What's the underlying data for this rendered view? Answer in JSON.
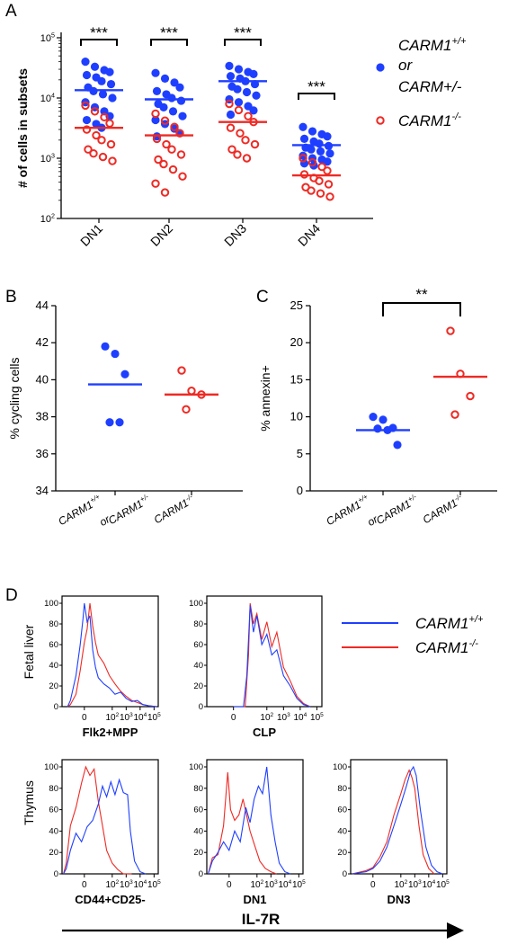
{
  "colors": {
    "wt": "#1f3fff",
    "ko": "#ee2a24",
    "axis": "#000000"
  },
  "panels": {
    "a": "A",
    "b": "B",
    "c": "C",
    "d": "D"
  },
  "chart_data": [
    {
      "id": "A",
      "type": "scatter",
      "log_y": true,
      "ylabel": "# of cells in subsets",
      "y_ticks": [
        {
          "v": 100,
          "base": "10",
          "exp": "2"
        },
        {
          "v": 1000,
          "base": "10",
          "exp": "3"
        },
        {
          "v": 10000,
          "base": "10",
          "exp": "4"
        },
        {
          "v": 100000,
          "base": "10",
          "exp": "5"
        }
      ],
      "ylim": [
        100,
        100000
      ],
      "categories": [
        "DN1",
        "DN2",
        "DN3",
        "DN4"
      ],
      "significance": [
        "***",
        "***",
        "***",
        "***"
      ],
      "legend": {
        "wt_lines": [
          {
            "main": "CARM1",
            "sup": "+/+"
          },
          {
            "main": "or",
            "sup": ""
          },
          {
            "main": "CARM+/-",
            "sup": ""
          }
        ],
        "ko_lines": [
          {
            "main": "CARM1",
            "sup": "-/-"
          }
        ]
      },
      "series": [
        {
          "group": "wt",
          "means": [
            13500,
            9500,
            19000,
            1650
          ],
          "values": [
            [
              40000,
              33000,
              29000,
              27000,
              24000,
              22000,
              19000,
              17000,
              15000,
              13000,
              11500,
              10000,
              8500,
              7000,
              6000,
              5000,
              4300,
              3700,
              3200
            ],
            [
              26000,
              21000,
              18000,
              15000,
              13000,
              11500,
              10000,
              9000,
              8000,
              7000,
              6000,
              5000,
              4300,
              3700,
              3100,
              2600,
              2300
            ],
            [
              34000,
              30000,
              27000,
              25000,
              23000,
              21000,
              19000,
              17000,
              15500,
              14000,
              12500,
              11000,
              9500,
              8500,
              7300,
              6200,
              5300
            ],
            [
              3300,
              2800,
              2500,
              2300,
              2100,
              1900,
              1750,
              1600,
              1500,
              1400,
              1300,
              1200,
              1100,
              1000,
              950,
              880,
              820,
              760
            ]
          ]
        },
        {
          "group": "ko",
          "means": [
            3200,
            2400,
            4000,
            520
          ],
          "values": [
            [
              7500,
              6000,
              4800,
              3800,
              3000,
              2400,
              2000,
              1700,
              1400,
              1200,
              1050,
              900
            ],
            [
              5500,
              4200,
              3300,
              2600,
              2100,
              1700,
              1400,
              1150,
              950,
              800,
              650,
              500,
              380,
              270
            ],
            [
              8000,
              6300,
              5000,
              4000,
              3200,
              2600,
              2000,
              1700,
              1400,
              1150,
              1000
            ],
            [
              1000,
              850,
              720,
              620,
              540,
              470,
              420,
              370,
              330,
              290,
              260,
              230
            ]
          ]
        }
      ]
    },
    {
      "id": "B",
      "type": "scatter",
      "ylabel": "% cycling cells",
      "y_ticks": [
        34,
        36,
        38,
        40,
        42,
        44
      ],
      "ylim": [
        34,
        44
      ],
      "categories": [
        {
          "lines": [
            [
              {
                "t": "CARM1",
                "s": "+/+"
              }
            ],
            [
              {
                "t": "or",
                "s": ""
              }
            ],
            [
              {
                "t": "CARM1",
                "s": "+/-"
              }
            ]
          ]
        },
        {
          "lines": [
            [
              {
                "t": "CARM1",
                "s": "-/-"
              }
            ]
          ]
        }
      ],
      "series": [
        {
          "group": "wt",
          "mean": 39.75,
          "values": [
            41.8,
            41.4,
            40.3,
            37.7,
            37.7
          ]
        },
        {
          "group": "ko",
          "mean": 39.2,
          "values": [
            40.5,
            39.4,
            39.2,
            38.4
          ]
        }
      ]
    },
    {
      "id": "C",
      "type": "scatter",
      "ylabel": "% annexin+",
      "y_ticks": [
        0,
        5,
        10,
        15,
        20,
        25
      ],
      "ylim": [
        0,
        25
      ],
      "significance": "**",
      "categories": [
        {
          "lines": [
            [
              {
                "t": "CARM1",
                "s": "+/+"
              }
            ],
            [
              {
                "t": "or",
                "s": ""
              }
            ],
            [
              {
                "t": "CARM1",
                "s": "+/-"
              }
            ]
          ]
        },
        {
          "lines": [
            [
              {
                "t": "CARM1",
                "s": "-/-"
              }
            ]
          ]
        }
      ],
      "series": [
        {
          "group": "wt",
          "mean": 8.2,
          "values": [
            10.0,
            9.6,
            8.5,
            8.4,
            8.2,
            6.2
          ]
        },
        {
          "group": "ko",
          "mean": 15.4,
          "values": [
            21.6,
            15.8,
            12.8,
            10.3
          ]
        }
      ]
    },
    {
      "id": "D",
      "type": "line",
      "legend": [
        {
          "group": "wt",
          "main": "CARM1",
          "sup": "+/+"
        },
        {
          "group": "ko",
          "main": "CARM1",
          "sup": "-/-"
        }
      ],
      "row_labels": [
        "Fetal liver",
        "Thymus"
      ],
      "y_ticks": [
        0,
        20,
        40,
        60,
        80,
        100
      ],
      "ylim": [
        0,
        100
      ],
      "x_ticks": [
        {
          "v": 0,
          "base": "0",
          "exp": ""
        },
        {
          "v": 2,
          "base": "10",
          "exp": "2"
        },
        {
          "v": 3,
          "base": "10",
          "exp": "3"
        },
        {
          "v": 4,
          "base": "10",
          "exp": "4"
        },
        {
          "v": 5,
          "base": "10",
          "exp": "5"
        }
      ],
      "xaxis_label": "IL-7R",
      "plots": [
        {
          "label": "Flk2+MPP",
          "wt": [
            [
              -1.2,
              0
            ],
            [
              -1,
              6
            ],
            [
              -0.6,
              30
            ],
            [
              -0.3,
              60
            ],
            [
              -0.1,
              85
            ],
            [
              0,
              100
            ],
            [
              0.2,
              82
            ],
            [
              0.4,
              88
            ],
            [
              0.6,
              55
            ],
            [
              0.8,
              38
            ],
            [
              1,
              28
            ],
            [
              1.4,
              22
            ],
            [
              1.8,
              18
            ],
            [
              2.2,
              12
            ],
            [
              2.6,
              14
            ],
            [
              3,
              8
            ],
            [
              3.4,
              5
            ],
            [
              3.8,
              6
            ],
            [
              4.2,
              2
            ],
            [
              4.6,
              1
            ],
            [
              5.2,
              0
            ]
          ],
          "ko": [
            [
              -1.2,
              0
            ],
            [
              -1,
              2
            ],
            [
              -0.6,
              12
            ],
            [
              -0.3,
              35
            ],
            [
              0,
              62
            ],
            [
              0.2,
              75
            ],
            [
              0.4,
              100
            ],
            [
              0.6,
              78
            ],
            [
              0.8,
              62
            ],
            [
              1,
              50
            ],
            [
              1.4,
              42
            ],
            [
              1.8,
              30
            ],
            [
              2.2,
              22
            ],
            [
              2.6,
              15
            ],
            [
              3,
              10
            ],
            [
              3.4,
              6
            ],
            [
              3.8,
              4
            ],
            [
              4.2,
              2
            ],
            [
              4.6,
              1
            ],
            [
              5.2,
              0
            ]
          ]
        },
        {
          "label": "CLP",
          "wt": [
            [
              0,
              0
            ],
            [
              0.6,
              0
            ],
            [
              0.8,
              30
            ],
            [
              1,
              98
            ],
            [
              1.2,
              72
            ],
            [
              1.4,
              88
            ],
            [
              1.7,
              60
            ],
            [
              2,
              70
            ],
            [
              2.3,
              50
            ],
            [
              2.6,
              55
            ],
            [
              3,
              30
            ],
            [
              3.4,
              20
            ],
            [
              3.8,
              8
            ],
            [
              4.2,
              2
            ],
            [
              4.6,
              0
            ]
          ],
          "ko": [
            [
              0,
              0
            ],
            [
              0.7,
              0
            ],
            [
              0.9,
              50
            ],
            [
              1,
              100
            ],
            [
              1.2,
              80
            ],
            [
              1.4,
              90
            ],
            [
              1.7,
              65
            ],
            [
              2,
              82
            ],
            [
              2.3,
              58
            ],
            [
              2.6,
              72
            ],
            [
              3,
              38
            ],
            [
              3.4,
              25
            ],
            [
              3.8,
              10
            ],
            [
              4.2,
              3
            ],
            [
              4.6,
              0
            ]
          ]
        },
        {
          "label": "CD44+CD25-",
          "wt": [
            [
              -1.5,
              0
            ],
            [
              -1.3,
              5
            ],
            [
              -1,
              22
            ],
            [
              -0.6,
              38
            ],
            [
              -0.2,
              30
            ],
            [
              0.2,
              44
            ],
            [
              0.6,
              50
            ],
            [
              1,
              65
            ],
            [
              1.3,
              82
            ],
            [
              1.6,
              72
            ],
            [
              1.9,
              86
            ],
            [
              2.2,
              74
            ],
            [
              2.5,
              88
            ],
            [
              2.8,
              76
            ],
            [
              3.1,
              74
            ],
            [
              3.3,
              40
            ],
            [
              3.6,
              12
            ],
            [
              4,
              2
            ],
            [
              4.4,
              0
            ]
          ],
          "ko": [
            [
              -1.5,
              0
            ],
            [
              -1.3,
              10
            ],
            [
              -1,
              45
            ],
            [
              -0.6,
              62
            ],
            [
              -0.2,
              85
            ],
            [
              0.1,
              100
            ],
            [
              0.4,
              92
            ],
            [
              0.7,
              98
            ],
            [
              1,
              68
            ],
            [
              1.3,
              45
            ],
            [
              1.6,
              22
            ],
            [
              2,
              10
            ],
            [
              2.4,
              4
            ],
            [
              2.8,
              0
            ],
            [
              3.4,
              0
            ]
          ]
        },
        {
          "label": "DN1",
          "wt": [
            [
              -1.5,
              0
            ],
            [
              -1.2,
              12
            ],
            [
              -0.8,
              20
            ],
            [
              -0.4,
              30
            ],
            [
              0,
              22
            ],
            [
              0.4,
              40
            ],
            [
              0.8,
              30
            ],
            [
              1.2,
              62
            ],
            [
              1.5,
              48
            ],
            [
              1.8,
              70
            ],
            [
              2.1,
              82
            ],
            [
              2.4,
              75
            ],
            [
              2.7,
              100
            ],
            [
              3,
              55
            ],
            [
              3.3,
              30
            ],
            [
              3.6,
              10
            ],
            [
              4,
              2
            ],
            [
              4.4,
              0
            ]
          ],
          "ko": [
            [
              -1.5,
              0
            ],
            [
              -1.2,
              15
            ],
            [
              -0.8,
              18
            ],
            [
              -0.4,
              45
            ],
            [
              -0.1,
              95
            ],
            [
              0.1,
              60
            ],
            [
              0.4,
              50
            ],
            [
              0.7,
              55
            ],
            [
              1,
              70
            ],
            [
              1.2,
              58
            ],
            [
              1.5,
              40
            ],
            [
              1.8,
              28
            ],
            [
              2.2,
              12
            ],
            [
              2.6,
              5
            ],
            [
              3,
              2
            ],
            [
              3.4,
              0
            ]
          ]
        },
        {
          "label": "DN3",
          "wt": [
            [
              -1.5,
              0
            ],
            [
              -0.5,
              2
            ],
            [
              0,
              5
            ],
            [
              0.5,
              12
            ],
            [
              1,
              25
            ],
            [
              1.5,
              45
            ],
            [
              2,
              65
            ],
            [
              2.4,
              82
            ],
            [
              2.7,
              96
            ],
            [
              2.9,
              100
            ],
            [
              3.1,
              92
            ],
            [
              3.4,
              60
            ],
            [
              3.8,
              25
            ],
            [
              4.2,
              8
            ],
            [
              4.6,
              2
            ],
            [
              5,
              0
            ]
          ],
          "ko": [
            [
              -1.5,
              0
            ],
            [
              -0.5,
              3
            ],
            [
              0,
              6
            ],
            [
              0.5,
              16
            ],
            [
              1,
              30
            ],
            [
              1.5,
              55
            ],
            [
              2,
              75
            ],
            [
              2.3,
              88
            ],
            [
              2.6,
              97
            ],
            [
              2.8,
              90
            ],
            [
              3,
              80
            ],
            [
              3.3,
              45
            ],
            [
              3.6,
              18
            ],
            [
              4,
              5
            ],
            [
              4.4,
              0
            ]
          ]
        }
      ]
    }
  ]
}
